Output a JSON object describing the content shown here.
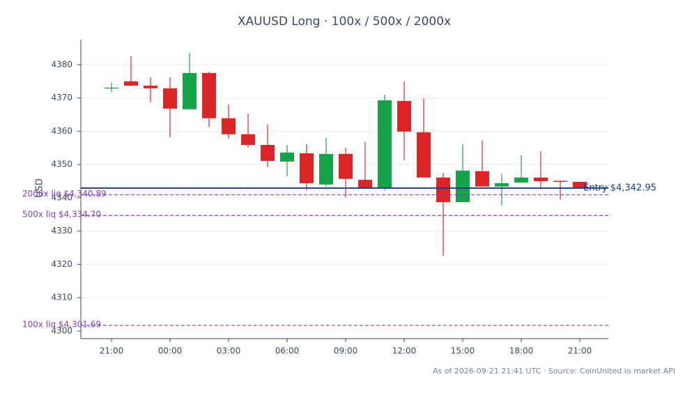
{
  "chart_data": {
    "type": "candlestick",
    "title": "XAUUSD Long · 100x / 500x / 2000x",
    "ylabel": "USD",
    "footnote": "As of 2026-09-21 21:41 UTC · Source: CoinUnited.io market API",
    "categories": [
      "21:00",
      null,
      null,
      "00:00",
      null,
      null,
      "03:00",
      null,
      null,
      "06:00",
      null,
      null,
      "09:00",
      null,
      null,
      "12:00",
      null,
      null,
      "15:00",
      null,
      null,
      "18:00",
      null,
      null,
      "21:00"
    ],
    "open": [
      4372.9,
      4375.0,
      4373.7,
      4372.9,
      4366.6,
      4377.5,
      4363.9,
      4359.1,
      4355.9,
      4350.9,
      4353.4,
      4344.0,
      4353.2,
      4345.4,
      4343.1,
      4369.1,
      4359.7,
      4346.1,
      4338.7,
      4348.0,
      4343.4,
      4344.6,
      4346.1,
      4345.1,
      4344.8
    ],
    "high": [
      4374.6,
      4382.5,
      4376.2,
      4376.2,
      4383.6,
      4377.9,
      4368.1,
      4365.3,
      4362.0,
      4355.9,
      4356.1,
      4358.0,
      4355.1,
      4356.8,
      4371.0,
      4375.0,
      4369.9,
      4347.5,
      4356.1,
      4357.2,
      4347.1,
      4352.8,
      4354.0,
      4345.2,
      4344.8
    ],
    "low": [
      4371.8,
      4373.6,
      4368.7,
      4358.2,
      4366.6,
      4361.2,
      4357.8,
      4355.1,
      4349.2,
      4346.5,
      4342.3,
      4343.4,
      4340.2,
      4343.1,
      4342.1,
      4351.3,
      4346.1,
      4322.6,
      4338.7,
      4343.4,
      4337.7,
      4344.6,
      4342.5,
      4339.4,
      4342.9
    ],
    "close": [
      4373.1,
      4373.7,
      4372.9,
      4366.8,
      4377.5,
      4363.9,
      4359.1,
      4355.9,
      4351.1,
      4353.6,
      4344.4,
      4353.2,
      4345.7,
      4343.1,
      4369.3,
      4359.9,
      4346.1,
      4338.7,
      4348.2,
      4343.4,
      4344.4,
      4346.1,
      4345.0,
      4344.8,
      4342.9
    ],
    "up_color": "#16a34a",
    "down_color": "#dc2626",
    "ylim": [
      4297.7,
      4387.5
    ],
    "yticks": [
      4300,
      4310,
      4320,
      4330,
      4340,
      4350,
      4360,
      4370,
      4380
    ],
    "grid": true,
    "reference_lines": [
      {
        "value": 4342.95,
        "label": "Entry $4,342.95",
        "color": "#1e3a8a",
        "style": "solid",
        "label_side": "right"
      },
      {
        "value": 4340.89,
        "label": "2000x liq $4,340.89",
        "color": "#7e3fbf",
        "style": "dashed",
        "label_side": "left"
      },
      {
        "value": 4334.7,
        "label": "500x liq $4,334.70",
        "color": "#7e3fbf",
        "style": "dashed",
        "label_side": "left"
      },
      {
        "value": 4301.69,
        "label": "100x liq $4,301.69",
        "color": "#7e3fbf",
        "style": "dashed",
        "label_side": "left"
      }
    ]
  }
}
